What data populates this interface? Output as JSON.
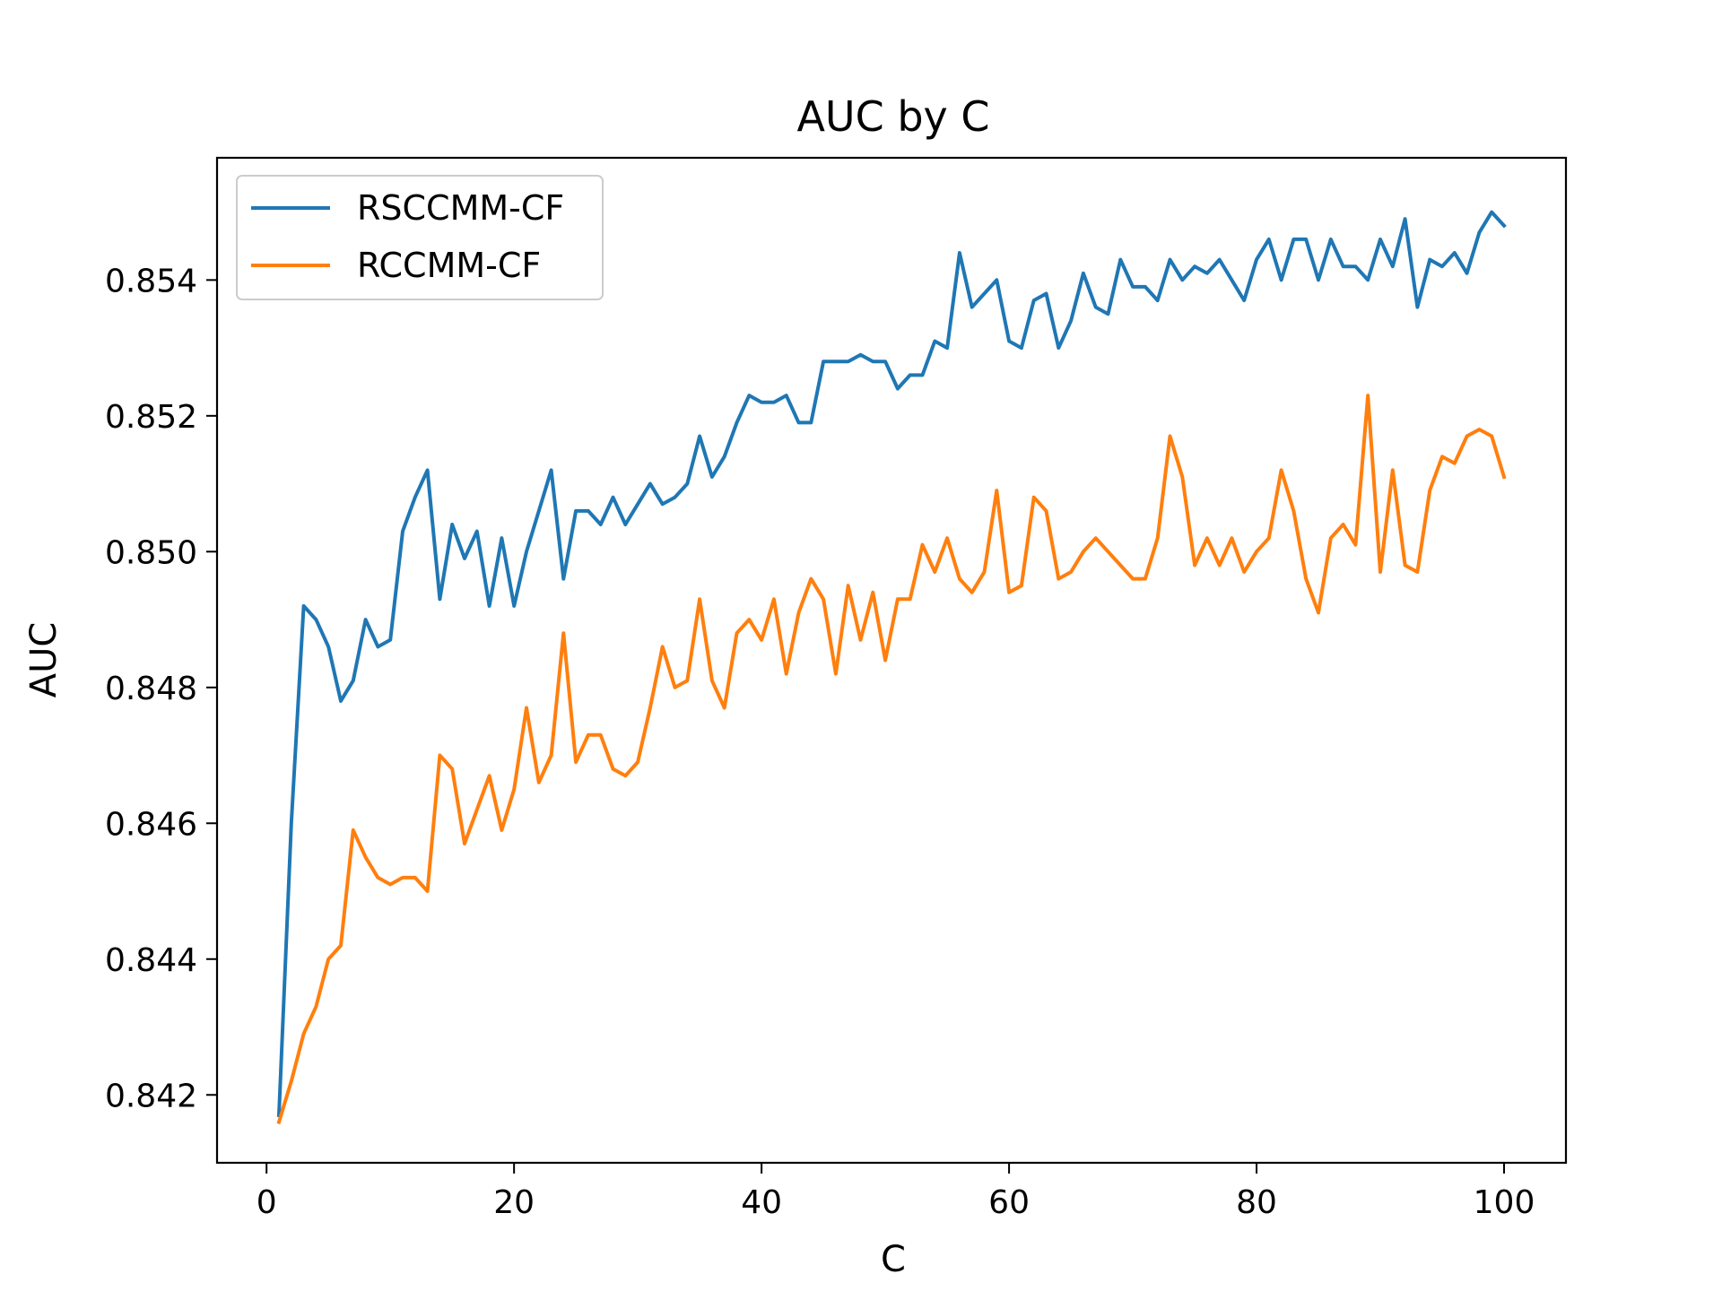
{
  "chart_data": {
    "type": "line",
    "title": "AUC by C",
    "xlabel": "C",
    "ylabel": "AUC",
    "xlim": [
      -4,
      105
    ],
    "ylim": [
      0.841,
      0.8558
    ],
    "xticks": [
      0,
      20,
      40,
      60,
      80,
      100
    ],
    "yticks": [
      0.842,
      0.844,
      0.846,
      0.848,
      0.85,
      0.852,
      0.854
    ],
    "ytick_labels": [
      "0.842",
      "0.844",
      "0.846",
      "0.848",
      "0.850",
      "0.852",
      "0.854"
    ],
    "grid": false,
    "legend": "upper left",
    "x": [
      1,
      2,
      3,
      4,
      5,
      6,
      7,
      8,
      9,
      10,
      11,
      12,
      13,
      14,
      15,
      16,
      17,
      18,
      19,
      20,
      21,
      22,
      23,
      24,
      25,
      26,
      27,
      28,
      29,
      30,
      31,
      32,
      33,
      34,
      35,
      36,
      37,
      38,
      39,
      40,
      41,
      42,
      43,
      44,
      45,
      46,
      47,
      48,
      49,
      50,
      51,
      52,
      53,
      54,
      55,
      56,
      57,
      58,
      59,
      60,
      61,
      62,
      63,
      64,
      65,
      66,
      67,
      68,
      69,
      70,
      71,
      72,
      73,
      74,
      75,
      76,
      77,
      78,
      79,
      80,
      81,
      82,
      83,
      84,
      85,
      86,
      87,
      88,
      89,
      90,
      91,
      92,
      93,
      94,
      95,
      96,
      97,
      98,
      99,
      100
    ],
    "series": [
      {
        "name": "RSCCMM-CF",
        "color": "#1f77b4",
        "values": [
          0.8417,
          0.846,
          0.8492,
          0.849,
          0.8486,
          0.8478,
          0.8481,
          0.849,
          0.8486,
          0.8487,
          0.8503,
          0.8508,
          0.8512,
          0.8493,
          0.8504,
          0.8499,
          0.8503,
          0.8492,
          0.8502,
          0.8492,
          0.85,
          0.8506,
          0.8512,
          0.8496,
          0.8506,
          0.8506,
          0.8504,
          0.8508,
          0.8504,
          0.8507,
          0.851,
          0.8507,
          0.8508,
          0.851,
          0.8517,
          0.8511,
          0.8514,
          0.8519,
          0.8523,
          0.8522,
          0.8522,
          0.8523,
          0.8519,
          0.8519,
          0.8528,
          0.8528,
          0.8528,
          0.8529,
          0.8528,
          0.8528,
          0.8524,
          0.8526,
          0.8526,
          0.8531,
          0.853,
          0.8544,
          0.8536,
          0.8538,
          0.854,
          0.8531,
          0.853,
          0.8537,
          0.8538,
          0.853,
          0.8534,
          0.8541,
          0.8536,
          0.8535,
          0.8543,
          0.8539,
          0.8539,
          0.8537,
          0.8543,
          0.854,
          0.8542,
          0.8541,
          0.8543,
          0.854,
          0.8537,
          0.8543,
          0.8546,
          0.854,
          0.8546,
          0.8546,
          0.854,
          0.8546,
          0.8542,
          0.8542,
          0.854,
          0.8546,
          0.8542,
          0.8549,
          0.8536,
          0.8543,
          0.8542,
          0.8544,
          0.8541,
          0.8547,
          0.855,
          0.8548
        ]
      },
      {
        "name": "RCCMM-CF",
        "color": "#ff7f0e",
        "values": [
          0.8416,
          0.8422,
          0.8429,
          0.8433,
          0.844,
          0.8442,
          0.8459,
          0.8455,
          0.8452,
          0.8451,
          0.8452,
          0.8452,
          0.845,
          0.847,
          0.8468,
          0.8457,
          0.8462,
          0.8467,
          0.8459,
          0.8465,
          0.8477,
          0.8466,
          0.847,
          0.8488,
          0.8469,
          0.8473,
          0.8473,
          0.8468,
          0.8467,
          0.8469,
          0.8477,
          0.8486,
          0.848,
          0.8481,
          0.8493,
          0.8481,
          0.8477,
          0.8488,
          0.849,
          0.8487,
          0.8493,
          0.8482,
          0.8491,
          0.8496,
          0.8493,
          0.8482,
          0.8495,
          0.8487,
          0.8494,
          0.8484,
          0.8493,
          0.8493,
          0.8501,
          0.8497,
          0.8502,
          0.8496,
          0.8494,
          0.8497,
          0.8509,
          0.8494,
          0.8495,
          0.8508,
          0.8506,
          0.8496,
          0.8497,
          0.85,
          0.8502,
          0.85,
          0.8498,
          0.8496,
          0.8496,
          0.8502,
          0.8517,
          0.8511,
          0.8498,
          0.8502,
          0.8498,
          0.8502,
          0.8497,
          0.85,
          0.8502,
          0.8512,
          0.8506,
          0.8496,
          0.8491,
          0.8502,
          0.8504,
          0.8501,
          0.8523,
          0.8497,
          0.8512,
          0.8498,
          0.8497,
          0.8509,
          0.8514,
          0.8513,
          0.8517,
          0.8518,
          0.8517,
          0.8511
        ]
      }
    ]
  }
}
